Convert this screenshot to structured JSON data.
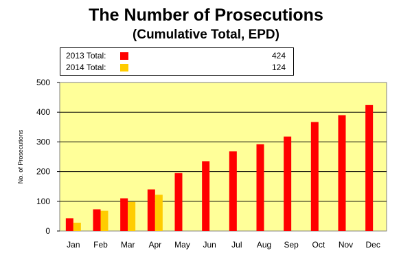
{
  "chart_data": {
    "type": "bar",
    "title": "The Number of Prosecutions",
    "subtitle": "(Cumulative Total, EPD)",
    "ylabel": "No. of Prosecutions",
    "xlabel": "",
    "ylim": [
      0,
      500
    ],
    "yticks": [
      0,
      100,
      200,
      300,
      400,
      500
    ],
    "grid": true,
    "legend_position": "top",
    "plot_background": "#FFFF99",
    "categories": [
      "Jan",
      "Feb",
      "Mar",
      "Apr",
      "May",
      "Jun",
      "Jul",
      "Aug",
      "Sep",
      "Oct",
      "Nov",
      "Dec"
    ],
    "series": [
      {
        "name": "2013 Total:",
        "total": "424",
        "color": "#FF0000",
        "values": [
          43,
          73,
          110,
          140,
          195,
          235,
          268,
          292,
          318,
          367,
          390,
          424
        ]
      },
      {
        "name": "2014 Total:",
        "total": "124",
        "color": "#FFCC00",
        "values": [
          28,
          68,
          98,
          122,
          null,
          null,
          null,
          null,
          null,
          null,
          null,
          null
        ]
      }
    ]
  }
}
